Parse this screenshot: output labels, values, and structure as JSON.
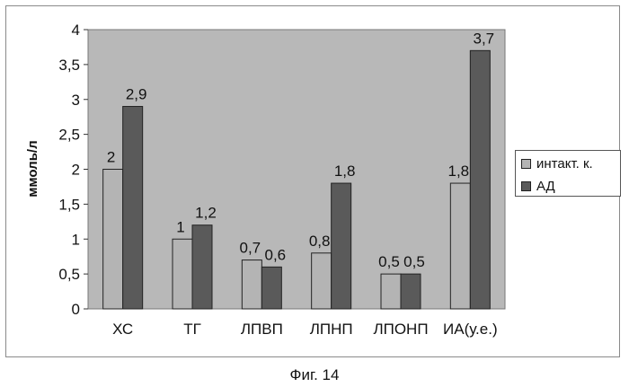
{
  "chart_data": {
    "type": "bar",
    "ylabel": "ммоль/л",
    "ylim": [
      0,
      4
    ],
    "yticks": [
      "0",
      "0,5",
      "1",
      "1,5",
      "2",
      "2,5",
      "3",
      "3,5",
      "4"
    ],
    "categories": [
      "ХС",
      "ТГ",
      "ЛПВП",
      "ЛПНП",
      "ЛПОНП",
      "ИА(у.е.)"
    ],
    "series": [
      {
        "name": "интакт. к.",
        "values": [
          2,
          1,
          0.7,
          0.8,
          0.5,
          1.8
        ],
        "labels": [
          "2",
          "1",
          "0,7",
          "0,8",
          "0,5",
          "1,8"
        ],
        "color": "#b4b4b4"
      },
      {
        "name": "АД",
        "values": [
          2.9,
          1.2,
          0.6,
          1.8,
          0.5,
          3.7
        ],
        "labels": [
          "2,9",
          "1,2",
          "0,6",
          "1,8",
          "0,5",
          "3,7"
        ],
        "color": "#5a5a5a"
      }
    ],
    "grid": false,
    "legend": "right",
    "plot_background": "#b8b8b8"
  },
  "caption": "Фиг. 14"
}
